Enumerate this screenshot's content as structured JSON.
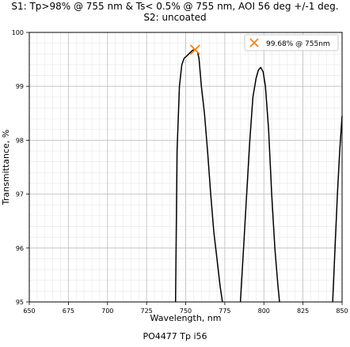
{
  "chart_data": {
    "type": "line",
    "title_lines": [
      "S1: Tp>98% @ 755 nm & Ts< 0.5% @ 755 nm, AOI 56 deg +/-1 deg.",
      "S2: uncoated"
    ],
    "xlabel": "Wavelength, nm",
    "ylabel": "Transmittance, %",
    "caption": "PO4477 Tp i56",
    "xlim": [
      650,
      850
    ],
    "ylim": [
      95,
      100
    ],
    "x_ticks": [
      650,
      675,
      700,
      725,
      750,
      775,
      800,
      825,
      850
    ],
    "y_ticks": [
      95,
      96,
      97,
      98,
      99,
      100
    ],
    "grid": true,
    "minor_grid": true,
    "legend_position": "top-right",
    "legend": [
      {
        "label": "99.68% @ 755nm",
        "marker": "x",
        "color": "#ff7f0e"
      }
    ],
    "series": [
      {
        "color": "#000000",
        "x": [
          743.5,
          744.5,
          746,
          747.5,
          749,
          751,
          753,
          754.5,
          756,
          757.5,
          758.5,
          760,
          762,
          764,
          766,
          768,
          770,
          772,
          773.5
        ],
        "y": [
          95.0,
          97.8,
          99.0,
          99.4,
          99.52,
          99.57,
          99.63,
          99.67,
          99.68,
          99.64,
          99.52,
          99.0,
          98.5,
          97.8,
          97.0,
          96.3,
          95.8,
          95.3,
          95.0
        ]
      },
      {
        "color": "#000000",
        "x": [
          785,
          787,
          789,
          791,
          793,
          795,
          796.5,
          798,
          799.5,
          801,
          803,
          805,
          807,
          809,
          810
        ],
        "y": [
          95.0,
          96.0,
          97.0,
          98.0,
          98.8,
          99.15,
          99.3,
          99.35,
          99.27,
          99.0,
          98.2,
          97.0,
          96.0,
          95.3,
          95.0
        ]
      },
      {
        "color": "#000000",
        "x": [
          844,
          845.5,
          847,
          848.5,
          850
        ],
        "y": [
          95.0,
          96.0,
          97.0,
          97.8,
          98.45
        ]
      }
    ],
    "markers": [
      {
        "x": 756,
        "y": 99.68,
        "marker": "x",
        "color": "#ff7f0e"
      }
    ]
  }
}
